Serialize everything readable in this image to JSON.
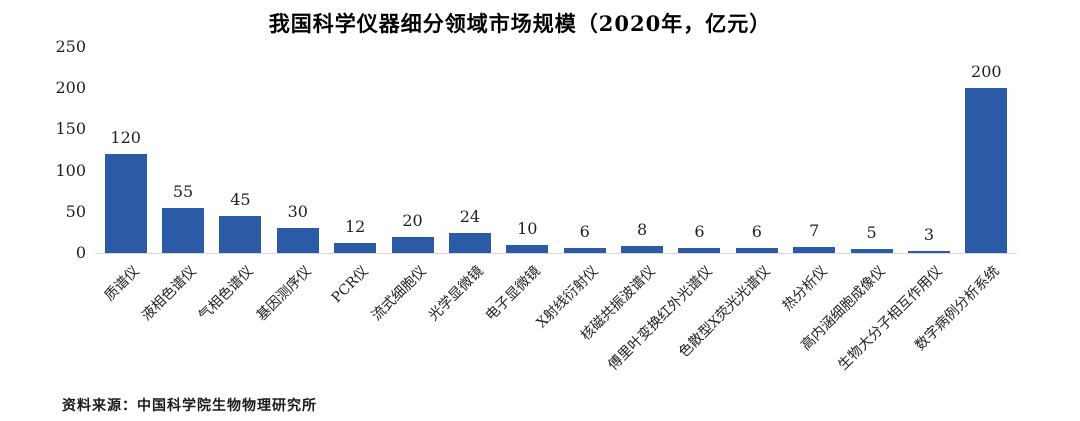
{
  "title": "我国科学仪器细分领域市场规模（2020年，亿元）",
  "source": "资料来源：中国科学院生物物理研究所",
  "colors": {
    "bar": "#2b5ba6",
    "axis": "#d6d6d6",
    "text": "#1a1a1a"
  },
  "chart_data": {
    "type": "bar",
    "title": "我国科学仪器细分领域市场规模（2020年，亿元）",
    "categories": [
      "质谱仪",
      "液相色谱仪",
      "气相色谱仪",
      "基因测序仪",
      "PCR仪",
      "流式细胞仪",
      "光学显微镜",
      "电子显微镜",
      "X射线衍射仪",
      "核磁共振波谱仪",
      "傅里叶变换红外光谱仪",
      "色散型X荧光光谱仪",
      "热分析仪",
      "高内涵细胞成像仪",
      "生物大分子相互作用仪",
      "数字病例分析系统"
    ],
    "values": [
      120,
      55,
      45,
      30,
      12,
      20,
      24,
      10,
      6,
      8,
      6,
      6,
      7,
      5,
      3,
      200
    ],
    "xlabel": "",
    "ylabel": "",
    "ylim": [
      0,
      250
    ],
    "yticks": [
      0,
      50,
      100,
      150,
      200,
      250
    ],
    "grid": false,
    "legend_position": "none",
    "data_labels": true,
    "bar_color": "#2b5ba6"
  }
}
